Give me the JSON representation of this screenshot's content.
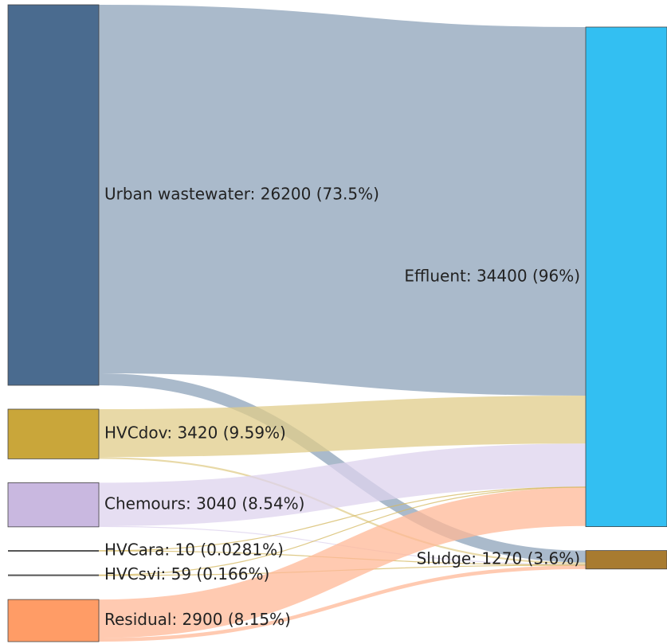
{
  "chart_data": {
    "type": "sankey",
    "nodes": [
      {
        "label": "Urban wastewater: 26200 (73.5%)",
        "value": 26200,
        "color": "#4a6b8f",
        "side": "source"
      },
      {
        "label": "HVCdov: 3420 (9.59%)",
        "value": 3420,
        "color": "#c9a63a",
        "side": "source"
      },
      {
        "label": "Chemours: 3040 (8.54%)",
        "value": 3040,
        "color": "#c9b8e0",
        "side": "source"
      },
      {
        "label": "HVCara: 10 (0.0281%)",
        "value": 10,
        "color": "#555555",
        "side": "source"
      },
      {
        "label": "HVCsvi: 59 (0.166%)",
        "value": 59,
        "color": "#555555",
        "side": "source"
      },
      {
        "label": "Residual: 2900 (8.15%)",
        "value": 2900,
        "color": "#ff9c66",
        "side": "source"
      },
      {
        "label": "Effluent: 34400 (96%)",
        "value": 34400,
        "color": "#33bff2",
        "side": "target"
      },
      {
        "label": "Sludge: 1270 (3.6%)",
        "value": 1270,
        "color": "#a87b30",
        "side": "target"
      }
    ],
    "links": [
      {
        "source": 0,
        "target": 6,
        "value": 25380,
        "color": "#8ea3ba"
      },
      {
        "source": 0,
        "target": 7,
        "value": 820,
        "color": "#8ea3ba"
      },
      {
        "source": 1,
        "target": 6,
        "value": 3300,
        "color": "#e0cc8a"
      },
      {
        "source": 1,
        "target": 7,
        "value": 120,
        "color": "#e0cc8a"
      },
      {
        "source": 2,
        "target": 6,
        "value": 2990,
        "color": "#ddd3ee"
      },
      {
        "source": 2,
        "target": 7,
        "value": 50,
        "color": "#ddd3ee"
      },
      {
        "source": 3,
        "target": 6,
        "value": 5,
        "color": "#d4b860"
      },
      {
        "source": 3,
        "target": 7,
        "value": 5,
        "color": "#d4b860"
      },
      {
        "source": 4,
        "target": 6,
        "value": 30,
        "color": "#d4b860"
      },
      {
        "source": 4,
        "target": 7,
        "value": 29,
        "color": "#d4b860"
      },
      {
        "source": 5,
        "target": 6,
        "value": 2650,
        "color": "#ffb897"
      },
      {
        "source": 5,
        "target": 7,
        "value": 250,
        "color": "#ffb897"
      }
    ]
  }
}
